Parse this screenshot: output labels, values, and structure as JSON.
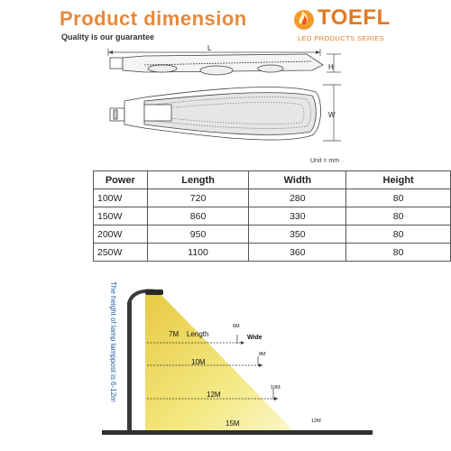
{
  "header": {
    "title": "Product dimension",
    "tagline": "Quality is our guarantee",
    "brand": "TOEFL",
    "brand_sub": "LED PRODUCTS SERIES"
  },
  "drawing": {
    "label_length": "L",
    "label_height": "H",
    "label_width": "W",
    "unit": "Unit = mm"
  },
  "table": {
    "headers": [
      "Power",
      "Length",
      "Width",
      "Height"
    ],
    "rows": [
      [
        "100W",
        "720",
        "280",
        "80"
      ],
      [
        "150W",
        "860",
        "330",
        "80"
      ],
      [
        "200W",
        "950",
        "350",
        "80"
      ],
      [
        "250W",
        "1100",
        "360",
        "80"
      ]
    ]
  },
  "scene": {
    "side_text": "The height of lamp lamppost is 6-12m",
    "length_label": "Length",
    "wide_label": "Wide",
    "rows": [
      {
        "length": "7M",
        "wide": "6M"
      },
      {
        "length": "10M",
        "wide": "8M"
      },
      {
        "length": "12M",
        "wide": "10M"
      },
      {
        "length": "15M",
        "wide": "12M"
      }
    ]
  },
  "colors": {
    "title": "#e8883a",
    "brand": "#e07a25",
    "light": "#f3e77a",
    "light_core": "#e6c63a",
    "ground": "#333333",
    "side_text": "#1f5e9c"
  }
}
